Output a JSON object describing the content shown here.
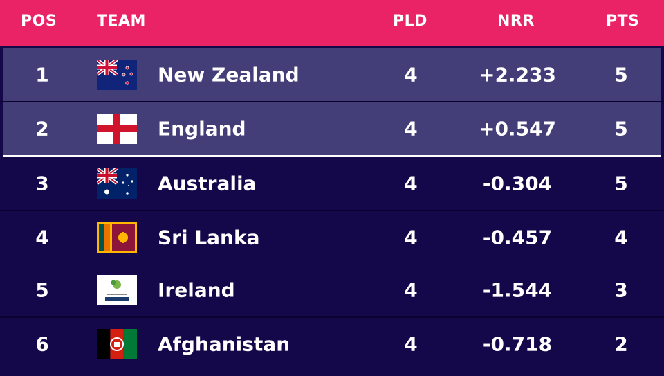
{
  "header": {
    "pos": "POS",
    "team": "TEAM",
    "pld": "PLD",
    "nrr": "NRR",
    "pts": "PTS"
  },
  "colors": {
    "header_bg": "#ea2367",
    "qualified_row_bg": "#433e78",
    "row_bg": "#15084a"
  },
  "rows": [
    {
      "pos": "1",
      "team": "New Zealand",
      "flag": "new-zealand-flag-icon",
      "pld": "4",
      "nrr": "+2.233",
      "pts": "5",
      "qualified": true
    },
    {
      "pos": "2",
      "team": "England",
      "flag": "england-flag-icon",
      "pld": "4",
      "nrr": "+0.547",
      "pts": "5",
      "qualified": true
    },
    {
      "pos": "3",
      "team": "Australia",
      "flag": "australia-flag-icon",
      "pld": "4",
      "nrr": "-0.304",
      "pts": "5",
      "qualified": false
    },
    {
      "pos": "4",
      "team": "Sri Lanka",
      "flag": "sri-lanka-flag-icon",
      "pld": "4",
      "nrr": "-0.457",
      "pts": "4",
      "qualified": false
    },
    {
      "pos": "5",
      "team": "Ireland",
      "flag": "ireland-cricket-logo-icon",
      "pld": "4",
      "nrr": "-1.544",
      "pts": "3",
      "qualified": false
    },
    {
      "pos": "6",
      "team": "Afghanistan",
      "flag": "afghanistan-flag-icon",
      "pld": "4",
      "nrr": "-0.718",
      "pts": "2",
      "qualified": false
    }
  ]
}
